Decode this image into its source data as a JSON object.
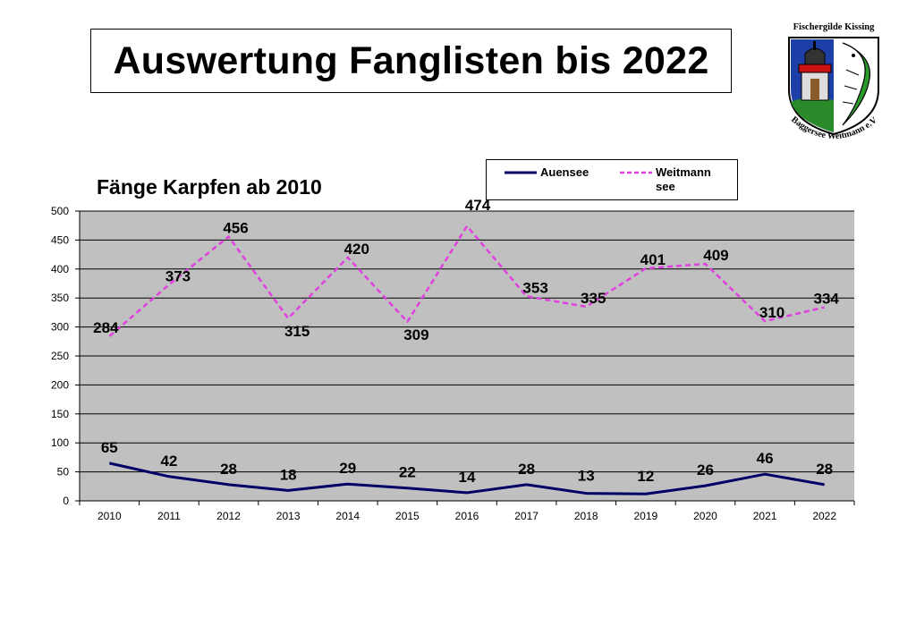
{
  "page": {
    "title": "Auswertung Fanglisten bis 2022",
    "logo": {
      "top_text": "Fischergilde Kissing",
      "bottom_text": "Baggersee Weitmann e.V."
    }
  },
  "colors": {
    "plot_background": "#c0c0c0",
    "auensee": "#000066",
    "weitmannsee": "#e040e0"
  },
  "chart_data": {
    "type": "line",
    "title": "Fänge Karpfen ab 2010",
    "categories": [
      "2010",
      "2011",
      "2012",
      "2013",
      "2014",
      "2015",
      "2016",
      "2017",
      "2018",
      "2019",
      "2020",
      "2021",
      "2022"
    ],
    "series": [
      {
        "name": "Auensee",
        "values": [
          65,
          42,
          28,
          18,
          29,
          22,
          14,
          28,
          13,
          12,
          26,
          46,
          28
        ],
        "style": "solid"
      },
      {
        "name": "Weitmann see",
        "values": [
          284,
          373,
          456,
          315,
          420,
          309,
          474,
          353,
          335,
          401,
          409,
          310,
          334
        ],
        "style": "dashed"
      }
    ],
    "ylim": [
      0,
      500
    ],
    "yticks": [
      0,
      50,
      100,
      150,
      200,
      250,
      300,
      350,
      400,
      450,
      500
    ],
    "grid": true,
    "legend_position": "top-right",
    "data_labels": true
  }
}
